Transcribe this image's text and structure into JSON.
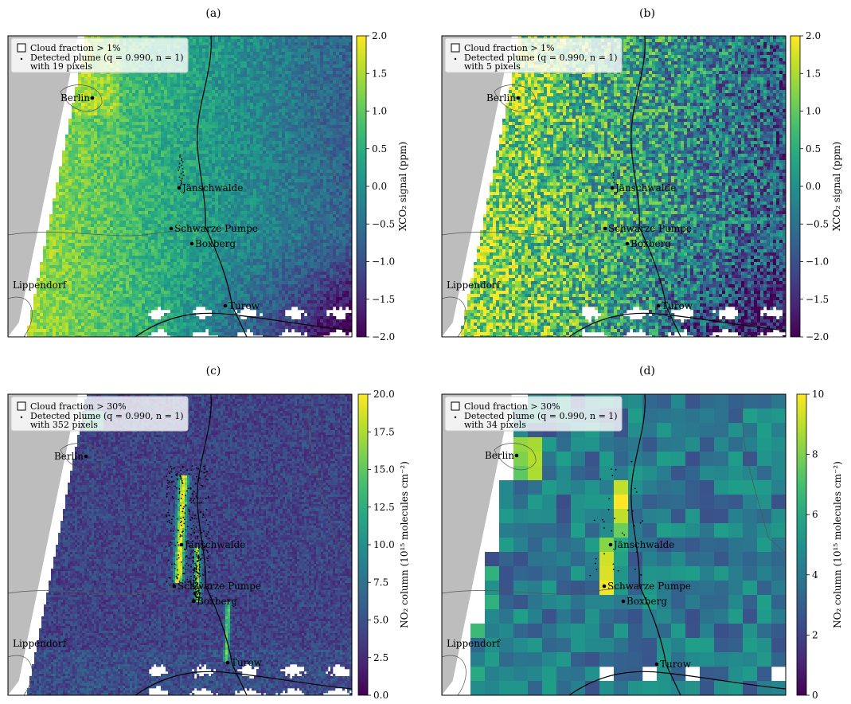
{
  "chart_data": [
    {
      "type": "heatmap",
      "caption": "(a)",
      "legend": {
        "cloud": "Cloud fraction > 1%",
        "plume_line1": "Detected plume (q = 0.990, n = 1)",
        "plume_line2": "with 19 pixels"
      },
      "colorbar": {
        "label": "XCO₂ signal (ppm)",
        "range": [
          -2.0,
          2.0
        ],
        "ticks": [
          "2.0",
          "1.5",
          "1.0",
          "0.5",
          "0.0",
          "−0.5",
          "−1.0",
          "−1.5",
          "−2.0"
        ],
        "colormap": "viridis"
      },
      "locations": [
        "Berlin",
        "Jänschwalde",
        "Schwarze Pumpe",
        "Boxberg",
        "Lippendorf",
        "Turow"
      ],
      "plume_pixels": 19,
      "field": {
        "upwind_west": 1.5,
        "center": 0.2,
        "east": -0.8,
        "southeast": -1.6
      }
    },
    {
      "type": "heatmap",
      "caption": "(b)",
      "legend": {
        "cloud": "Cloud fraction > 1%",
        "plume_line1": "Detected plume (q = 0.990, n = 1)",
        "plume_line2": "with 5 pixels"
      },
      "colorbar": {
        "label": "XCO₂ signal (ppm)",
        "range": [
          -2.0,
          2.0
        ],
        "ticks": [
          "2.0",
          "1.5",
          "1.0",
          "0.5",
          "0.0",
          "−0.5",
          "−1.0",
          "−1.5",
          "−2.0"
        ],
        "colormap": "viridis"
      },
      "locations": [
        "Berlin",
        "Jänschwalde",
        "Schwarze Pumpe",
        "Boxberg",
        "Lippendorf",
        "Turow"
      ],
      "plume_pixels": 5,
      "field": {
        "upwind_west": 1.6,
        "center": 0.1,
        "east": -0.6,
        "southeast": -1.3
      }
    },
    {
      "type": "heatmap",
      "caption": "(c)",
      "legend": {
        "cloud": "Cloud fraction > 30%",
        "plume_line1": "Detected plume (q = 0.990, n = 1)",
        "plume_line2": "with 352 pixels"
      },
      "colorbar": {
        "label": "NO₂ column (10¹⁵ molecules cm⁻²)",
        "range": [
          0,
          20
        ],
        "ticks": [
          "20.0",
          "17.5",
          "15.0",
          "12.5",
          "10.0",
          "7.5",
          "5.0",
          "2.5",
          "0.0"
        ],
        "colormap": "viridis"
      },
      "locations": [
        "Berlin",
        "Jänschwalde",
        "Schwarze Pumpe",
        "Boxberg",
        "Lippendorf",
        "Turow"
      ],
      "plume_pixels": 352,
      "field": {
        "background": 4.0,
        "plume_peak": 20.0
      }
    },
    {
      "type": "heatmap",
      "caption": "(d)",
      "legend": {
        "cloud": "Cloud fraction > 30%",
        "plume_line1": "Detected plume (q = 0.990, n = 1)",
        "plume_line2": "with 34 pixels"
      },
      "colorbar": {
        "label": "NO₂ column (10¹⁵ molecules cm⁻²)",
        "range": [
          0,
          10
        ],
        "ticks": [
          "10",
          "8",
          "6",
          "4",
          "2",
          "0"
        ],
        "colormap": "viridis"
      },
      "locations": [
        "Berlin",
        "Jänschwalde",
        "Schwarze Pumpe",
        "Boxberg",
        "Lippendorf",
        "Turow"
      ],
      "plume_pixels": 34,
      "field": {
        "background": 4.0,
        "plume_peak": 10.0
      }
    }
  ]
}
